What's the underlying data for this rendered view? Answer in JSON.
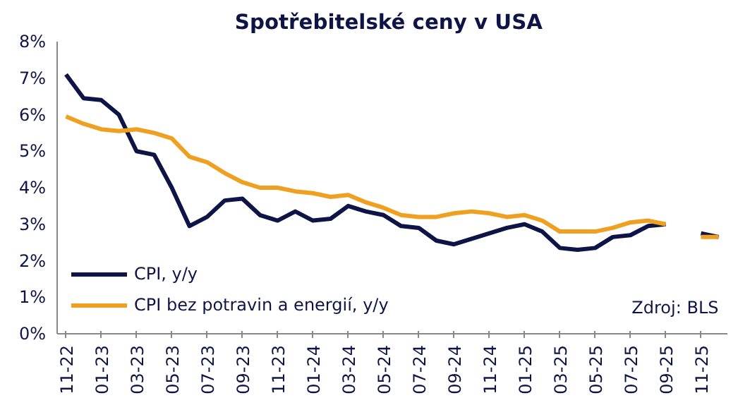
{
  "chart_data": {
    "type": "line",
    "title": "Spotřebitelské  ceny v USA",
    "categories": [
      "11-22",
      null,
      "01-23",
      null,
      "03-23",
      null,
      "05-23",
      null,
      "07-23",
      null,
      "09-23",
      null,
      "11-23",
      null,
      "01-24",
      null,
      "03-24",
      null,
      "05-24",
      null,
      "07-24",
      null,
      "09-24",
      null,
      "11-24",
      null,
      "01-25",
      null,
      "03-25",
      null,
      "05-25",
      null,
      "07-25",
      null,
      "09-25",
      null,
      "11-25",
      null
    ],
    "series": [
      {
        "name": "CPI, y/y",
        "color": "#0f1446",
        "values": [
          7.1,
          6.45,
          6.4,
          6.0,
          5.0,
          4.9,
          4.0,
          2.95,
          3.2,
          3.65,
          3.7,
          3.25,
          3.1,
          3.35,
          3.1,
          3.15,
          3.5,
          3.35,
          3.25,
          2.95,
          2.9,
          2.55,
          2.45,
          2.6,
          2.75,
          2.9,
          3.0,
          2.8,
          2.35,
          2.3,
          2.35,
          2.65,
          2.7,
          2.95,
          3.0,
          null,
          2.75,
          2.65
        ]
      },
      {
        "name": "CPI bez potravin a energií, y/y",
        "color": "#f0a020",
        "values": [
          5.95,
          5.75,
          5.6,
          5.55,
          5.6,
          5.5,
          5.35,
          4.85,
          4.7,
          4.4,
          4.15,
          4.0,
          4.0,
          3.9,
          3.85,
          3.75,
          3.8,
          3.6,
          3.45,
          3.25,
          3.2,
          3.2,
          3.3,
          3.35,
          3.3,
          3.2,
          3.25,
          3.1,
          2.8,
          2.8,
          2.8,
          2.9,
          3.05,
          3.1,
          3.0,
          null,
          2.65,
          2.65
        ]
      }
    ],
    "ylim": [
      0,
      8
    ],
    "yticks": [
      {
        "value": 0,
        "label": "0%"
      },
      {
        "value": 1,
        "label": "1%"
      },
      {
        "value": 2,
        "label": "2%"
      },
      {
        "value": 3,
        "label": "3%"
      },
      {
        "value": 4,
        "label": "4%"
      },
      {
        "value": 5,
        "label": "5%"
      },
      {
        "value": 6,
        "label": "6%"
      },
      {
        "value": 7,
        "label": "7%"
      },
      {
        "value": 8,
        "label": "8%"
      }
    ],
    "grid": false,
    "legend": "bottom left",
    "marker": "none",
    "line_style": "solid",
    "annotations": [
      "Zdroj: BLS"
    ]
  }
}
